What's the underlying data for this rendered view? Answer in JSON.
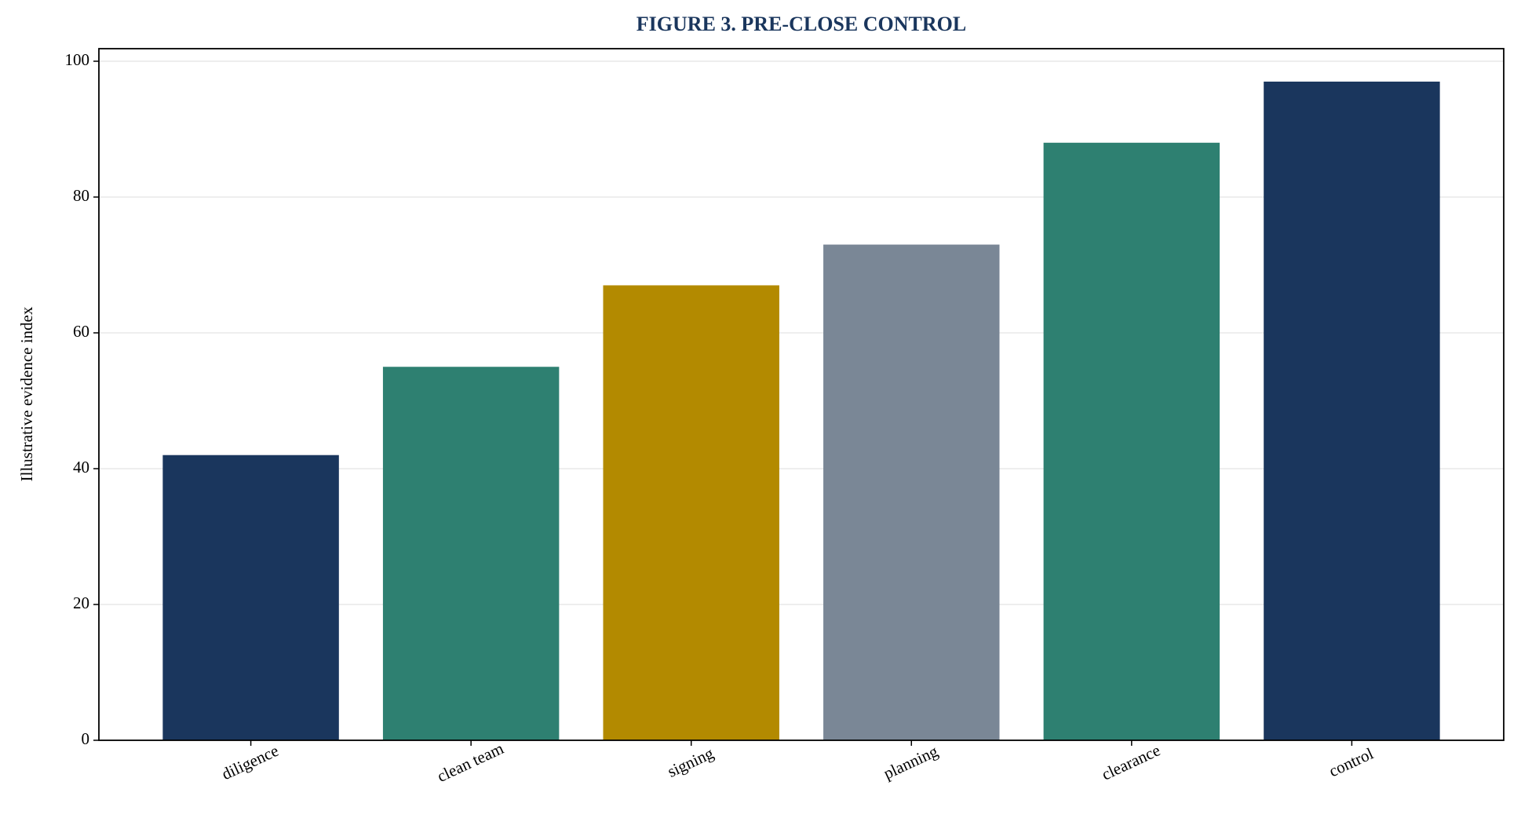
{
  "chart_data": {
    "type": "bar",
    "title": "FIGURE 3. PRE-CLOSE CONTROL",
    "y_label": "Illustrative evidence index",
    "categories": [
      "diligence",
      "clean team",
      "signing",
      "planning",
      "clearance",
      "control"
    ],
    "values": [
      42,
      55,
      67,
      73,
      88,
      97
    ],
    "colors": [
      "#1a365d",
      "#2e8071",
      "#b38a00",
      "#7a8796",
      "#2e8071",
      "#1a365d"
    ],
    "ylim": [
      0,
      101.85
    ],
    "yticks": [
      0,
      20,
      40,
      60,
      80,
      100
    ],
    "grid": true
  }
}
